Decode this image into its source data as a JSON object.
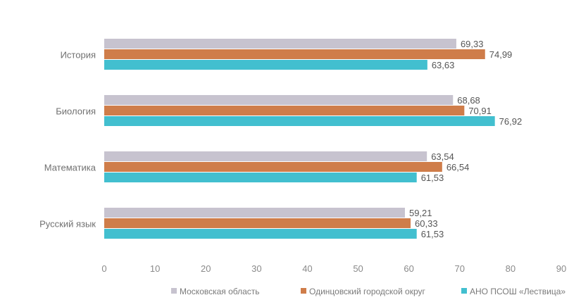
{
  "chart_data": {
    "type": "bar",
    "orientation": "horizontal",
    "categories": [
      "История",
      "Биология",
      "Математика",
      "Русский язык"
    ],
    "series": [
      {
        "name": "Московская область",
        "color": "#c7c3cf",
        "values": [
          69.33,
          68.68,
          63.54,
          59.21
        ],
        "labels": [
          "69,33",
          "68,68",
          "63,54",
          "59,21"
        ]
      },
      {
        "name": "Одинцовский городской округ",
        "color": "#cf7d4a",
        "values": [
          74.99,
          70.91,
          66.54,
          60.33
        ],
        "labels": [
          "74,99",
          "70,91",
          "66,54",
          "60,33"
        ]
      },
      {
        "name": "АНО ПСОШ «Лествица»",
        "color": "#42bfcf",
        "values": [
          63.63,
          76.92,
          61.53,
          61.53
        ],
        "labels": [
          "63,63",
          "76,92",
          "61,53",
          "61,53"
        ]
      }
    ],
    "xlim": [
      0,
      90
    ],
    "xticks": [
      "0",
      "10",
      "20",
      "30",
      "40",
      "50",
      "60",
      "70",
      "80",
      "90"
    ],
    "grid": false,
    "legend_position": "bottom"
  }
}
